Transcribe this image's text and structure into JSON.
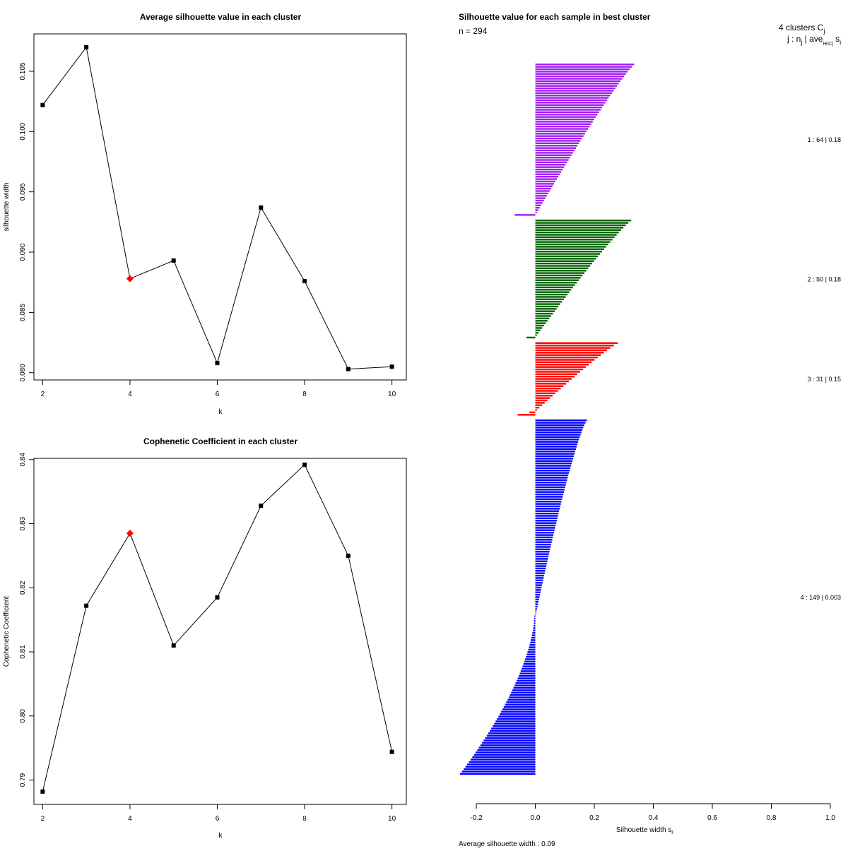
{
  "chart_data": [
    {
      "type": "line",
      "title": "Average silhouette value in each cluster",
      "xlabel": "k",
      "ylabel": "silhouette width",
      "x": [
        2,
        3,
        4,
        5,
        6,
        7,
        8,
        9,
        10
      ],
      "values": [
        0.1022,
        0.107,
        0.0878,
        0.0893,
        0.0808,
        0.0937,
        0.0876,
        0.0803,
        0.0805
      ],
      "highlight_k": 4,
      "highlight_color": "#ff0000",
      "xticks": [
        2,
        4,
        6,
        8,
        10
      ],
      "xtick_labels": [
        "2",
        "4",
        "6",
        "8",
        "10"
      ],
      "yticks": [
        0.08,
        0.085,
        0.09,
        0.095,
        0.1,
        0.105
      ],
      "ytick_labels": [
        "0.080",
        "0.085",
        "0.090",
        "0.095",
        "0.100",
        "0.105"
      ],
      "xlim": [
        1.8,
        10.33
      ],
      "ylim": [
        0.0794,
        0.1081
      ]
    },
    {
      "type": "line",
      "title": "Cophenetic Coefficient in each cluster",
      "xlabel": "k",
      "ylabel": "Cophenetic Coefficient",
      "x": [
        2,
        3,
        4,
        5,
        6,
        7,
        8,
        9,
        10
      ],
      "values": [
        0.7882,
        0.8172,
        0.8285,
        0.811,
        0.8185,
        0.8328,
        0.8392,
        0.825,
        0.7944
      ],
      "highlight_k": 4,
      "highlight_color": "#ff0000",
      "xticks": [
        2,
        4,
        6,
        8,
        10
      ],
      "xtick_labels": [
        "2",
        "4",
        "6",
        "8",
        "10"
      ],
      "yticks": [
        0.79,
        0.8,
        0.81,
        0.82,
        0.83,
        0.84
      ],
      "ytick_labels": [
        "0.79",
        "0.80",
        "0.81",
        "0.82",
        "0.83",
        "0.84"
      ],
      "xlim": [
        1.8,
        10.33
      ],
      "ylim": [
        0.7862,
        0.8402
      ]
    },
    {
      "type": "bar",
      "orientation": "horizontal",
      "title": "Silhouette value for each sample in best cluster",
      "n_label": "n = 294",
      "header_clusters": "4  clusters  C",
      "header_clusters_sub": "j",
      "header_cols": "j :  n",
      "header_cols_sub": "j",
      "header_cols_tail": " | ave",
      "header_cols_sub2": "i∈Cj",
      "header_cols_end": " s",
      "header_cols_sub3": "i",
      "xlabel": "Silhouette width s",
      "xlabel_sub": "i",
      "average_text": "Average silhouette width :  0.09",
      "xticks": [
        -0.2,
        0.0,
        0.2,
        0.4,
        0.6,
        0.8,
        1.0
      ],
      "xtick_labels": [
        "-0.2",
        "0.0",
        "0.2",
        "0.4",
        "0.6",
        "0.8",
        "1.0"
      ],
      "xlim": [
        -0.26,
        1.0
      ],
      "series": [
        {
          "name": "1",
          "color": "#a020f0",
          "n": 64,
          "avg": 0.18,
          "label": "1 :  64  |  0.18",
          "max": 0.335,
          "pos_min": 0.005,
          "neg": [
            -0.07
          ]
        },
        {
          "name": "2",
          "color": "#006400",
          "n": 50,
          "avg": 0.18,
          "label": "2 :  50  |  0.18",
          "max": 0.325,
          "pos_min": 0.005,
          "neg": [
            -0.03
          ]
        },
        {
          "name": "3",
          "color": "#ff0000",
          "n": 31,
          "avg": 0.15,
          "label": "3 :  31  |  0.15",
          "max": 0.28,
          "pos_min": 0.005,
          "neg": [
            -0.02,
            -0.06
          ]
        },
        {
          "name": "4",
          "color": "#0000ff",
          "n": 149,
          "avg": 0.003,
          "label": "4 :  149  |  0.003",
          "max": 0.175,
          "pos_min": 0.002,
          "neg_count": 67,
          "neg_min": -0.255
        }
      ]
    }
  ]
}
